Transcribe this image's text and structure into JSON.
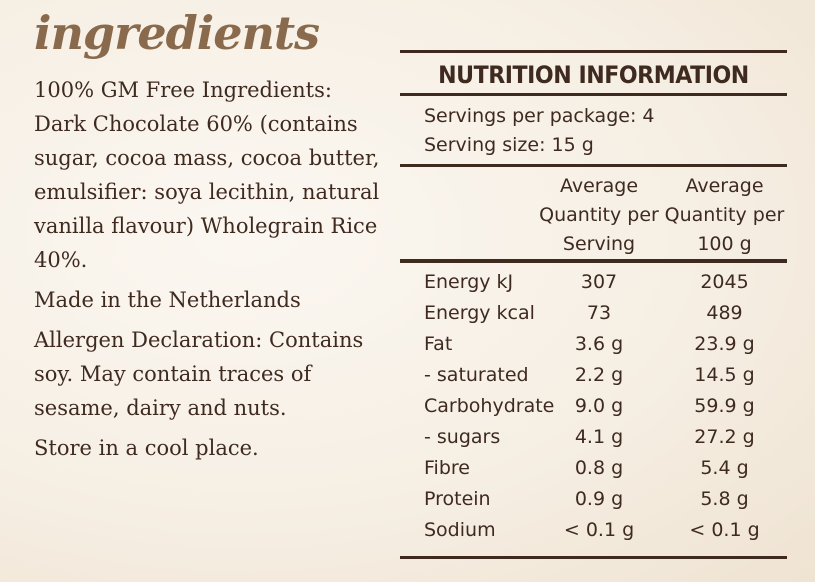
{
  "heading": "ingredients",
  "ingredients": {
    "paragraphs": [
      "100% GM Free Ingredients: Dark Chocolate 60% (contains sugar, cocoa mass, cocoa butter, emulsifier: soya lecithin, natural vanilla flavour) Wholegrain Rice 40%.",
      "Made in the Netherlands",
      "Allergen Declaration: Contains soy. May contain traces of sesame, dairy and nuts.",
      "Store in a cool place."
    ]
  },
  "nutrition": {
    "title": "NUTRITION INFORMATION",
    "servings_per_package": "Servings per package: 4",
    "serving_size": "Serving size: 15 g",
    "col_per_serving": "Average Quantity per Serving",
    "col_per_100g": "Average Quantity per 100 g",
    "rows": [
      {
        "name": "Energy kJ",
        "serving": "307",
        "per100": "2045"
      },
      {
        "name": "Energy kcal",
        "serving": "73",
        "per100": "489"
      },
      {
        "name": "Fat",
        "serving": "3.6 g",
        "per100": "23.9 g"
      },
      {
        "name": "- saturated",
        "serving": "2.2 g",
        "per100": "14.5 g"
      },
      {
        "name": "Carbohydrate",
        "serving": "9.0 g",
        "per100": "59.9 g"
      },
      {
        "name": "- sugars",
        "serving": "4.1 g",
        "per100": "27.2 g"
      },
      {
        "name": "Fibre",
        "serving": "0.8 g",
        "per100": "5.4 g"
      },
      {
        "name": "Protein",
        "serving": "0.9 g",
        "per100": "5.8 g"
      },
      {
        "name": "Sodium",
        "serving": "< 0.1 g",
        "per100": "< 0.1 g"
      }
    ]
  }
}
